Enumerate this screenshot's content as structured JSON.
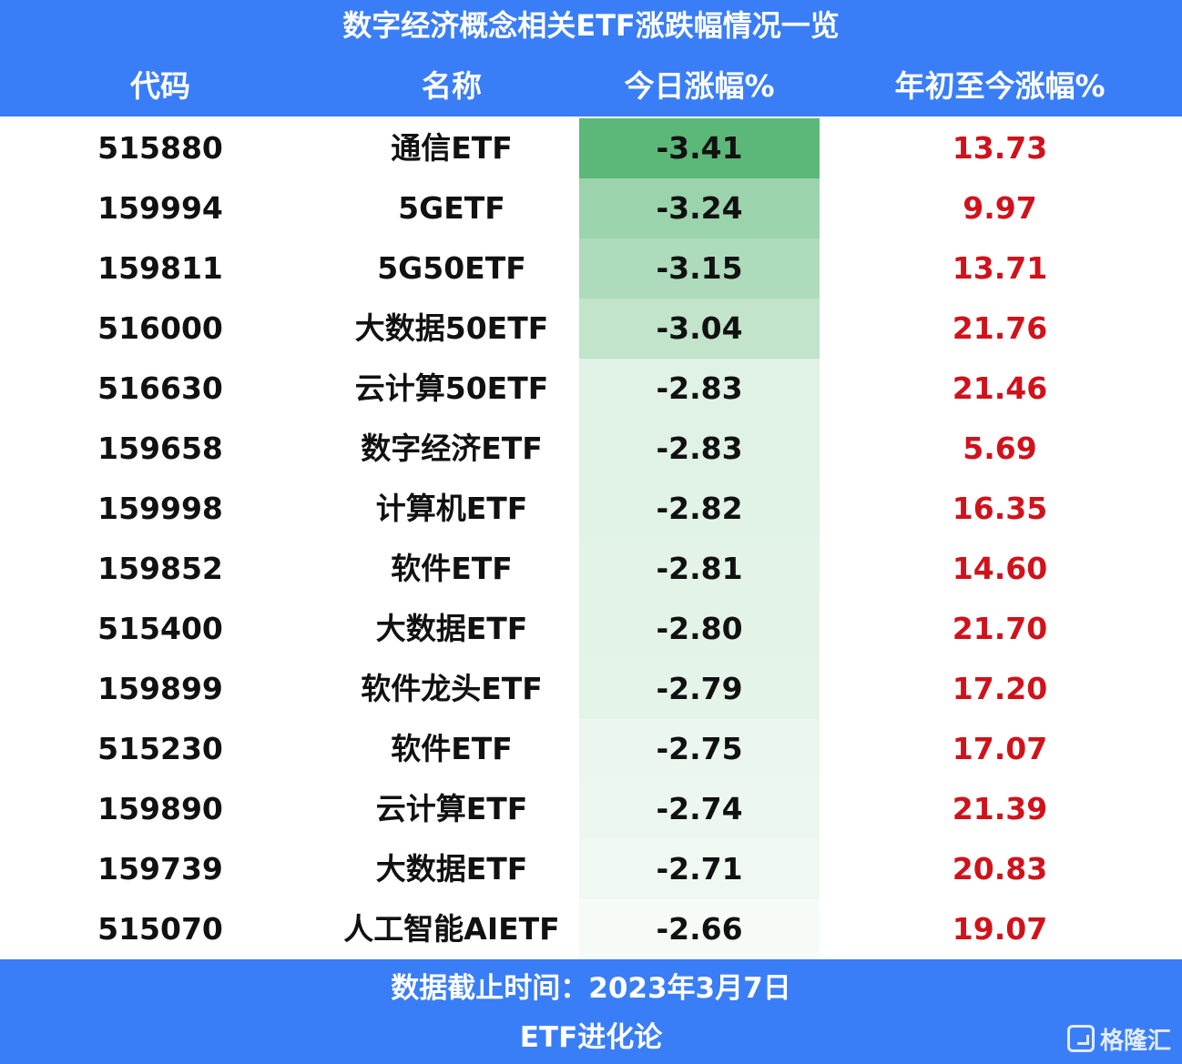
{
  "title": "数字经济概念相关ETF涨跌幅情况一览",
  "columns": [
    "代码",
    "名称",
    "今日涨幅%",
    "年初至今涨幅%"
  ],
  "rows": [
    {
      "code": "515880",
      "name": "通信ETF",
      "today": "-3.41",
      "ytd": "13.73"
    },
    {
      "code": "159994",
      "name": "5GETF",
      "today": "-3.24",
      "ytd": "9.97"
    },
    {
      "code": "159811",
      "name": "5G50ETF",
      "today": "-3.15",
      "ytd": "13.71"
    },
    {
      "code": "516000",
      "name": "大数据50ETF",
      "today": "-3.04",
      "ytd": "21.76"
    },
    {
      "code": "516630",
      "name": "云计算50ETF",
      "today": "-2.83",
      "ytd": "21.46"
    },
    {
      "code": "159658",
      "name": "数字经济ETF",
      "today": "-2.83",
      "ytd": "5.69"
    },
    {
      "code": "159998",
      "name": "计算机ETF",
      "today": "-2.82",
      "ytd": "16.35"
    },
    {
      "code": "159852",
      "name": "软件ETF",
      "today": "-2.81",
      "ytd": "14.60"
    },
    {
      "code": "515400",
      "name": "大数据ETF",
      "today": "-2.80",
      "ytd": "21.70"
    },
    {
      "code": "159899",
      "name": "软件龙头ETF",
      "today": "-2.79",
      "ytd": "17.20"
    },
    {
      "code": "515230",
      "name": "软件ETF",
      "today": "-2.75",
      "ytd": "17.07"
    },
    {
      "code": "159890",
      "name": "云计算ETF",
      "today": "-2.74",
      "ytd": "21.39"
    },
    {
      "code": "159739",
      "name": "大数据ETF",
      "today": "-2.71",
      "ytd": "20.83"
    },
    {
      "code": "515070",
      "name": "人工智能AIETF",
      "today": "-2.66",
      "ytd": "19.07"
    }
  ],
  "footnote": "数据截止时间：2023年3月7日",
  "source": "ETF进化论",
  "watermark": "格隆汇",
  "colors": {
    "header_bg": "#3a7ef7",
    "ytd_text": "#d0121b",
    "heat_dark": "#5cb878",
    "heat_light": "#f6fbf7"
  }
}
